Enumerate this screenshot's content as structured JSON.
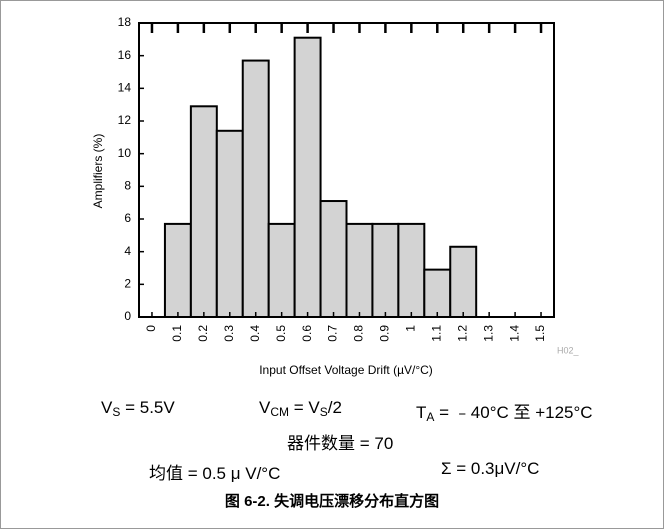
{
  "chart_data": {
    "type": "histogram",
    "x_label": "Input Offset Voltage Drift (µV/°C)",
    "y_label": "Amplifiers (%)",
    "bins": [
      0.05,
      0.15,
      0.25,
      0.35,
      0.45,
      0.55,
      0.65,
      0.75,
      0.85,
      0.95,
      1.05,
      1.15,
      1.25,
      1.35,
      1.45,
      1.55
    ],
    "values": [
      5.7,
      12.9,
      11.4,
      15.7,
      5.7,
      17.1,
      7.1,
      5.7,
      5.7,
      5.7,
      2.9,
      4.3,
      0,
      0,
      0
    ],
    "color": "#d3d3d3",
    "xlim": [
      -0.05,
      1.55
    ],
    "xticks": [
      0,
      0.1,
      0.2,
      0.3,
      0.4,
      0.5,
      0.6,
      0.7,
      0.8,
      0.9,
      1,
      1.1,
      1.2,
      1.3,
      1.4,
      1.5
    ],
    "ylim": [
      0,
      18
    ],
    "yticks": [
      0,
      2,
      4,
      6,
      8,
      10,
      12,
      14,
      16,
      18
    ],
    "watermark": "H02_"
  },
  "notes": {
    "vs": [
      "V",
      "S",
      " = 5.5V"
    ],
    "vcm": [
      "V",
      "CM",
      " = V",
      "S",
      "/2"
    ],
    "ta": [
      "T",
      "A",
      " = ﹣40°C 至 +125°C"
    ],
    "count": "器件数量 = 70",
    "mean": "均值 = 0.5 μ V/°C",
    "sigma": "Σ = 0.3μV/°C"
  },
  "caption": "图 6-2. 失调电压漂移分布直方图"
}
